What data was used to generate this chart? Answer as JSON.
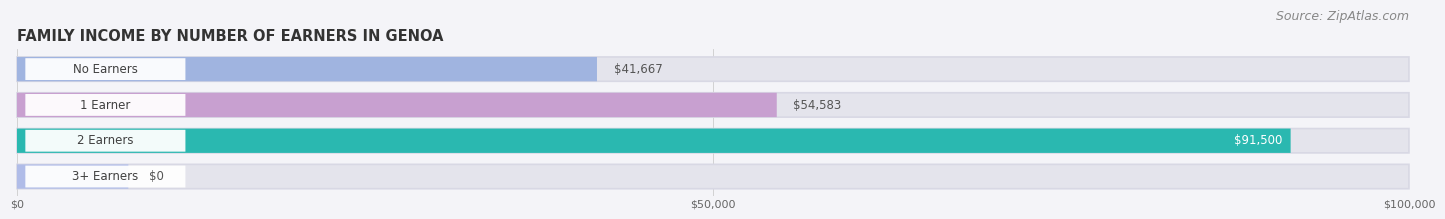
{
  "title": "FAMILY INCOME BY NUMBER OF EARNERS IN GENOA",
  "source": "Source: ZipAtlas.com",
  "categories": [
    "No Earners",
    "1 Earner",
    "2 Earners",
    "3+ Earners"
  ],
  "values": [
    41667,
    54583,
    91500,
    0
  ],
  "bar_colors": [
    "#a0b4e0",
    "#c8a0d0",
    "#2ab8b0",
    "#b0bce8"
  ],
  "value_labels": [
    "$41,667",
    "$54,583",
    "$91,500",
    "$0"
  ],
  "xlim": [
    0,
    100000
  ],
  "xticks": [
    0,
    50000,
    100000
  ],
  "xtick_labels": [
    "$0",
    "$50,000",
    "$100,000"
  ],
  "bg_color": "#f4f4f8",
  "bar_bg_color": "#e4e4ec",
  "title_fontsize": 10.5,
  "source_fontsize": 9,
  "label_fontsize": 8.5,
  "value_fontsize": 8.5,
  "bar_height": 0.68,
  "bar_spacing": 1.0
}
